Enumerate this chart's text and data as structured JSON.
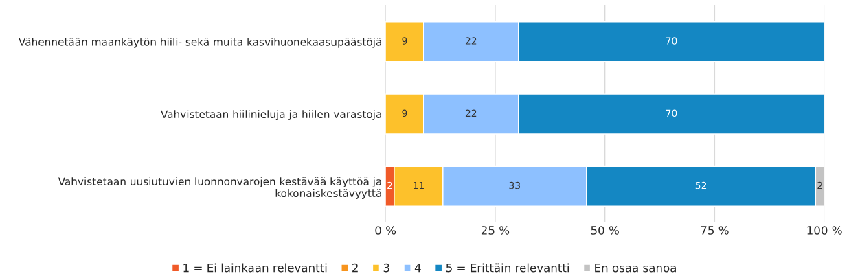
{
  "chart_data": {
    "type": "bar",
    "orientation": "horizontal",
    "stacked": true,
    "categories": [
      "Vähennetään maankäytön hiili- sekä muita kasvihuonekaasupäästöjä",
      "Vahvistetaan hiilinieluja ja hiilen varastoja",
      "Vahvistetaan uusiutuvien luonnonvarojen kestävää käyttöä ja\nkokonaiskestävyyttä"
    ],
    "series": [
      {
        "name": "1 = Ei lainkaan relevantti",
        "color": "#f05a28",
        "values": [
          null,
          null,
          2.0
        ],
        "value_labels": [
          null,
          null,
          "2"
        ]
      },
      {
        "name": "2",
        "color": "#f7941d",
        "values": [
          null,
          null,
          null
        ],
        "value_labels": [
          null,
          null,
          null
        ]
      },
      {
        "name": "3",
        "color": "#fdc12b",
        "values": [
          8.7,
          8.7,
          11.1
        ],
        "value_labels": [
          "9",
          "9",
          "11"
        ]
      },
      {
        "name": "4",
        "color": "#8dc0ff",
        "values": [
          21.6,
          21.6,
          32.7
        ],
        "value_labels": [
          "22",
          "22",
          "33"
        ]
      },
      {
        "name": "5 = Erittäin relevantti",
        "color": "#1487c3",
        "values": [
          69.7,
          69.7,
          52.2
        ],
        "value_labels": [
          "70",
          "70",
          "52"
        ]
      },
      {
        "name": "En osaa sanoa",
        "color": "#c3c3c3",
        "values": [
          null,
          null,
          2.0
        ],
        "value_labels": [
          null,
          null,
          "2"
        ]
      }
    ],
    "xlim": [
      0,
      100
    ],
    "xticks": [
      {
        "value": 0,
        "label": "0 %"
      },
      {
        "value": 25,
        "label": "25 %"
      },
      {
        "value": 50,
        "label": "50 %"
      },
      {
        "value": 75,
        "label": "75 %"
      },
      {
        "value": 100,
        "label": "100 %"
      }
    ],
    "grid": "x",
    "legend": "bottom"
  }
}
